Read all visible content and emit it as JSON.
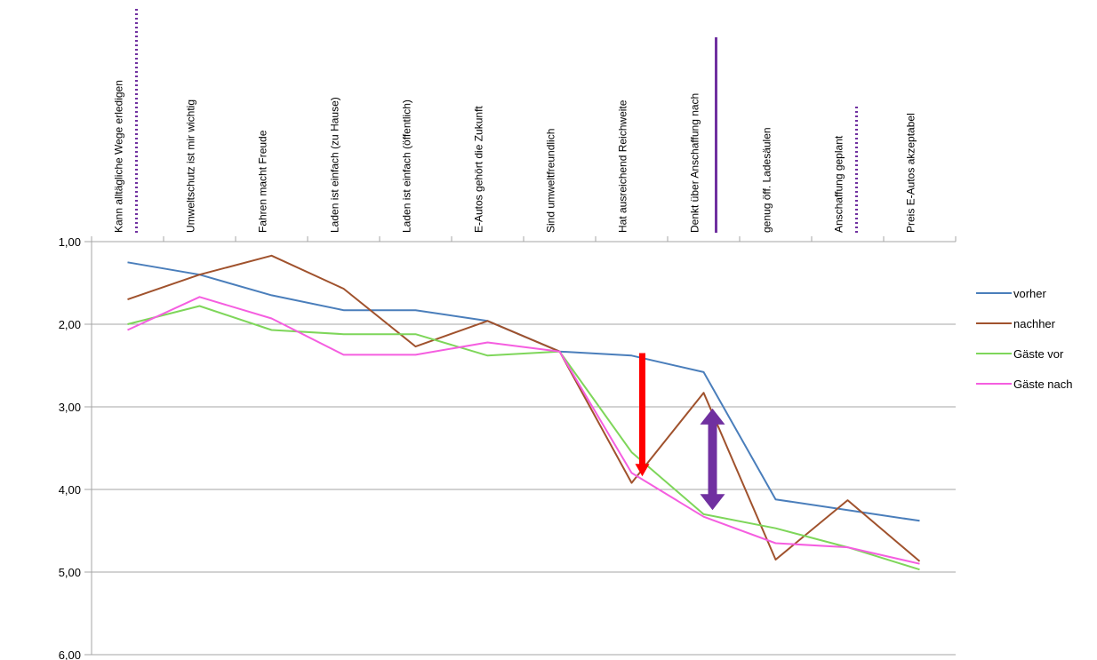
{
  "chart_data": {
    "type": "line",
    "y_reversed": true,
    "ylim": [
      1,
      6
    ],
    "yticks": [
      "1,00",
      "2,00",
      "3,00",
      "4,00",
      "5,00",
      "6,00"
    ],
    "grid": true,
    "legend_position": "right",
    "categories": [
      "Kann alltägliche Wege erledigen",
      "Umweltschutz ist mir wichtig",
      "Fahren macht Freude",
      "Laden ist einfach (zu Hause)",
      "Laden ist einfach (öffentlich)",
      "E-Autos gehört die Zukunft",
      "Sind umweltfreundlich",
      "Hat ausreichend Reichweite",
      "Denkt über Anschaffung nach",
      "genug öff. Ladesäulen",
      "Anschaffung geplant",
      "Preis E-Autos akzeptabel"
    ],
    "series": [
      {
        "name": "vorher",
        "color": "#4a7ebb",
        "values": [
          1.25,
          1.4,
          1.65,
          1.83,
          1.83,
          1.96,
          2.33,
          2.38,
          2.58,
          4.12,
          4.25,
          4.38
        ]
      },
      {
        "name": "nachher",
        "color": "#a0522d",
        "values": [
          1.7,
          1.4,
          1.17,
          1.57,
          2.27,
          1.96,
          2.33,
          3.92,
          2.83,
          4.85,
          4.13,
          4.87
        ]
      },
      {
        "name": "Gäste vor",
        "color": "#7ed65a",
        "values": [
          2.0,
          1.78,
          2.07,
          2.12,
          2.12,
          2.38,
          2.33,
          3.55,
          4.3,
          4.47,
          4.7,
          4.97
        ]
      },
      {
        "name": "Gäste nach",
        "color": "#f55ee0",
        "values": [
          2.07,
          1.67,
          1.93,
          2.37,
          2.37,
          2.22,
          2.33,
          3.8,
          4.33,
          4.65,
          4.7,
          4.9
        ]
      }
    ],
    "annotations": [
      {
        "type": "arrow-down",
        "category_index": 7,
        "from": 2.35,
        "to": 3.82,
        "color": "#ff0000"
      },
      {
        "type": "double-arrow",
        "category_index": 8,
        "from": 3.02,
        "to": 4.25,
        "color": "#7030a0"
      },
      {
        "type": "dotted-marker",
        "category_index": 0,
        "color": "#7030a0"
      },
      {
        "type": "solid-marker",
        "category_index": 8,
        "color": "#7030a0"
      },
      {
        "type": "dotted-marker",
        "category_index": 10,
        "color": "#7030a0"
      }
    ]
  }
}
